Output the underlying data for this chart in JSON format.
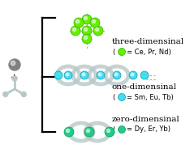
{
  "bg_color": "#ffffff",
  "label_3d": "three-dimensinal",
  "label_1d": "one-dimensinal",
  "label_0d": "zero-dimensinal",
  "green_bright": "#66ee00",
  "cyan_bright": "#44ddee",
  "teal_bright": "#22cc88",
  "gray_sphere": "#808080",
  "gray_light": "#b8c8c8",
  "font_size_label": 7.5,
  "font_size_legend": 6.0
}
